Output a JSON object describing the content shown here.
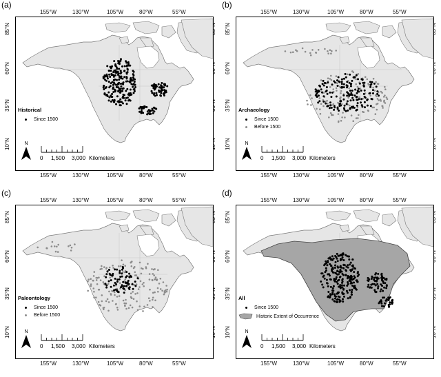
{
  "panels": [
    {
      "letter": "(a)",
      "legend_title": "Historical",
      "legend_items": [
        {
          "label": "Since 1500",
          "color": "#000000"
        }
      ]
    },
    {
      "letter": "(b)",
      "legend_title": "Archaeology",
      "legend_items": [
        {
          "label": "Since 1500",
          "color": "#000000"
        },
        {
          "label": "Before 1500",
          "color": "#8c8c8c"
        }
      ]
    },
    {
      "letter": "(c)",
      "legend_title": "Paleontology",
      "legend_items": [
        {
          "label": "Since 1500",
          "color": "#000000"
        },
        {
          "label": "Before 1500",
          "color": "#8c8c8c"
        }
      ]
    },
    {
      "letter": "(d)",
      "legend_title": "All",
      "legend_items": [
        {
          "label": "Since 1500",
          "color": "#000000"
        },
        {
          "label": "Historic Extent of Occurrence",
          "color": "#a0a0a0"
        }
      ]
    }
  ],
  "lon_ticks": [
    "155°W",
    "130°W",
    "105°W",
    "80°W",
    "55°W"
  ],
  "lat_ticks": [
    "85°N",
    "60°N",
    "35°N",
    "10°N"
  ],
  "scale_bar": {
    "labels": [
      "0",
      "1,500",
      "3,000"
    ],
    "unit": "Kilometers"
  },
  "north_arrow_label": "N",
  "colors": {
    "land": "#e6e6e6",
    "coast": "#7a7a7a",
    "extent": "#a6a6a6",
    "since1500": "#000000",
    "before1500": "#8c8c8c"
  }
}
